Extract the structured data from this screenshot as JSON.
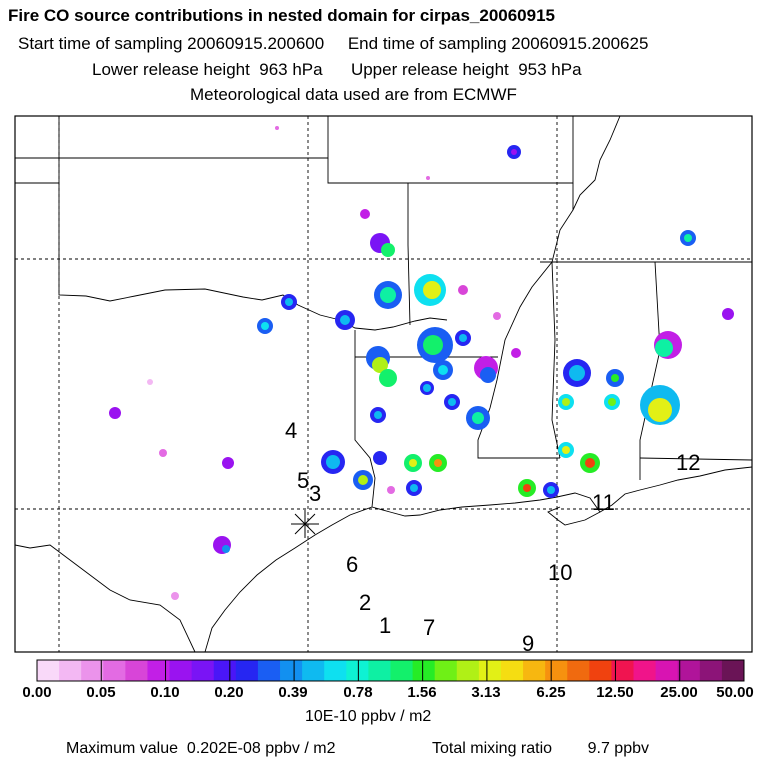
{
  "header": {
    "title": "Fire CO source contributions in nested domain for cirpas_20060915",
    "sampling_start": "Start time of sampling 20060915.200600",
    "sampling_end": "End time of sampling 20060915.200625",
    "lower_release": "Lower release height  963 hPa",
    "upper_release": "Upper release height  953 hPa",
    "met_data": "Meteorological data used are from ECMWF"
  },
  "map": {
    "point_labels": [
      "4",
      "5",
      "3",
      "6",
      "2",
      "1",
      "7",
      "10",
      "9",
      "11",
      "12"
    ],
    "release_marker": "star-cross-icon"
  },
  "colorbar": {
    "colors": [
      "#f9d9f9",
      "#f3b8f3",
      "#eb93eb",
      "#e36be3",
      "#d845d8",
      "#c21fe6",
      "#9a13f0",
      "#7a14f5",
      "#4a16f7",
      "#2626f2",
      "#1a5ef3",
      "#1290f0",
      "#0fbaf0",
      "#0ee0f0",
      "#0ef2d3",
      "#0ef0a3",
      "#13f06b",
      "#26ec26",
      "#6ff016",
      "#b0f016",
      "#e2f016",
      "#f5dd12",
      "#f7b710",
      "#f6910f",
      "#f06a0f",
      "#f0420f",
      "#f01450",
      "#f0148a",
      "#d814b2",
      "#b0149a",
      "#8c1478",
      "#6a1456"
    ],
    "tick_labels": [
      "0.00",
      "0.05",
      "0.10",
      "0.20",
      "0.39",
      "0.78",
      "1.56",
      "3.13",
      "6.25",
      "12.50",
      "25.00",
      "50.00"
    ],
    "units": "10E-10 ppbv / m2"
  },
  "footer": {
    "max_value": "Maximum value  0.202E-08 ppbv / m2",
    "total_mixing": "Total mixing ratio        9.7 ppbv"
  }
}
